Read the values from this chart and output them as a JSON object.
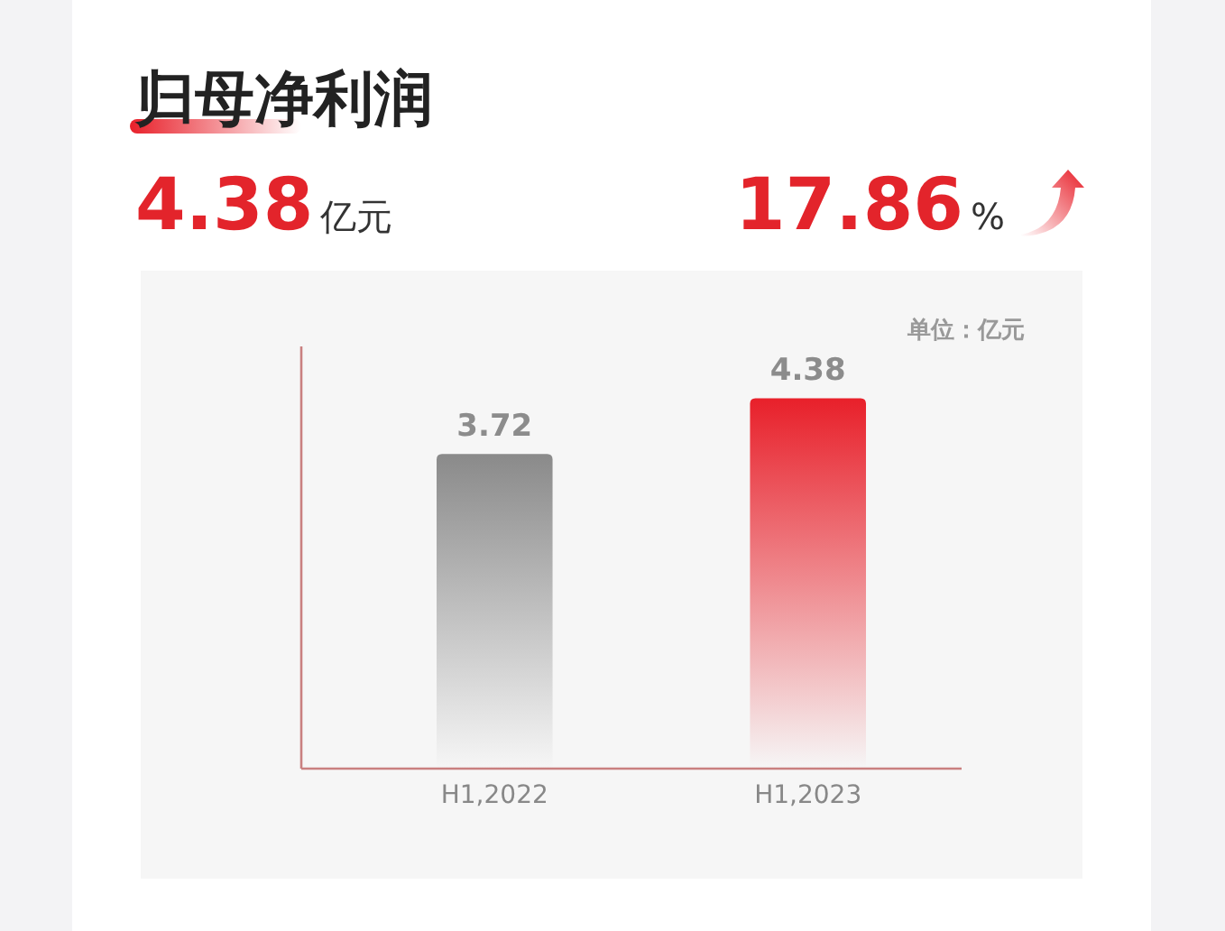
{
  "chart_data": {
    "type": "bar",
    "title": "归母净利润",
    "categories": [
      "H1,2022",
      "H1,2023"
    ],
    "values": [
      3.72,
      4.38
    ],
    "colors": [
      "#8a8a8a",
      "#e8202a"
    ],
    "data_labels": true,
    "annotations": [
      "4.38亿元",
      "17.86%",
      "单位：亿元"
    ]
  }
}
